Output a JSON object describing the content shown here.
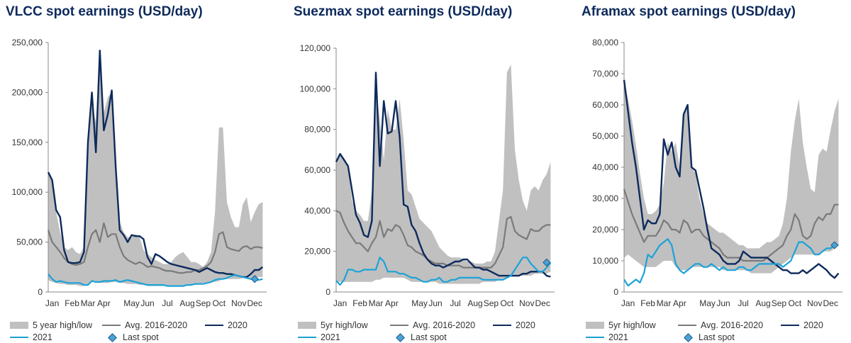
{
  "legend_colors": {
    "band": "#c0c0c0",
    "avg": "#7a7a7a",
    "y2020": "#0d2a5c",
    "y2021": "#1ba3d8",
    "last": "#4aa3d8"
  },
  "chart_data": [
    {
      "type": "area",
      "title": "VLCC spot earnings (USD/day)",
      "xlabel": "",
      "ylabel": "",
      "ylim": [
        0,
        250000
      ],
      "yticks": [
        "0",
        "50,000",
        "100,000",
        "150,000",
        "200,000",
        "250,000"
      ],
      "x_tick_labels": [
        "Jan",
        "Feb",
        "Mar",
        "Apr",
        "May",
        "Jun",
        "Jul",
        "Aug",
        "Sep",
        "Oct",
        "Nov",
        "Dec"
      ],
      "x_tick_weeks": [
        2,
        7,
        11,
        15,
        22,
        26,
        31,
        36,
        40,
        44,
        49,
        53
      ],
      "legend": [
        "5 year high/low",
        "Avg. 2016-2020",
        "2020",
        "2021",
        "Last spot"
      ],
      "band_high": [
        120000,
        110000,
        80000,
        60000,
        45000,
        42000,
        45000,
        40000,
        38000,
        45000,
        150000,
        190000,
        170000,
        240000,
        180000,
        195000,
        200000,
        120000,
        70000,
        60000,
        55000,
        55000,
        58000,
        55000,
        42000,
        38000,
        35000,
        32000,
        30000,
        28000,
        28000,
        30000,
        35000,
        38000,
        40000,
        35000,
        30000,
        30000,
        28000,
        25000,
        30000,
        40000,
        80000,
        165000,
        165000,
        90000,
        75000,
        65000,
        65000,
        88000,
        95000,
        70000,
        80000,
        88000,
        90000
      ],
      "band_low": [
        12000,
        10000,
        9000,
        8000,
        8000,
        7000,
        7000,
        7000,
        6000,
        6000,
        8000,
        10000,
        10000,
        9000,
        9000,
        9000,
        10000,
        10000,
        9000,
        9000,
        8000,
        8000,
        8000,
        7000,
        7000,
        6000,
        6000,
        6000,
        6000,
        6000,
        6000,
        6000,
        6000,
        6000,
        6000,
        7000,
        7000,
        7000,
        8000,
        9000,
        9000,
        10000,
        10000,
        11000,
        13000,
        13000,
        13000,
        13000,
        13000,
        14000,
        14000,
        14000,
        14000,
        15000,
        15000
      ],
      "series": [
        {
          "name": "Avg. 2016-2020",
          "values": [
            62000,
            50000,
            45000,
            40000,
            34000,
            30000,
            28000,
            27000,
            28000,
            30000,
            45000,
            58000,
            62000,
            50000,
            69000,
            55000,
            58000,
            58000,
            45000,
            36000,
            32000,
            30000,
            28000,
            30000,
            28000,
            25000,
            26000,
            25000,
            24000,
            22000,
            21000,
            21000,
            20000,
            19000,
            19000,
            20000,
            20000,
            22000,
            22000,
            24000,
            26000,
            30000,
            40000,
            58000,
            60000,
            45000,
            43000,
            42000,
            41000,
            45000,
            46000,
            43000,
            45000,
            45000,
            44000
          ]
        },
        {
          "name": "2020",
          "values": [
            120000,
            112000,
            82000,
            75000,
            42000,
            30000,
            29000,
            29000,
            30000,
            40000,
            150000,
            200000,
            140000,
            242000,
            162000,
            178000,
            202000,
            125000,
            62000,
            57000,
            50000,
            57000,
            56000,
            56000,
            53000,
            35000,
            28000,
            38000,
            36000,
            33000,
            30000,
            28000,
            27000,
            26000,
            25000,
            24000,
            23000,
            22000,
            20000,
            22000,
            24000,
            22000,
            20000,
            19000,
            19000,
            18000,
            18000,
            17000,
            16000,
            15000,
            15000,
            18000,
            22000,
            22000,
            25000
          ]
        },
        {
          "name": "2021",
          "values": [
            18000,
            13000,
            10000,
            11000,
            10000,
            9000,
            9000,
            9000,
            9000,
            7000,
            7000,
            11000,
            10000,
            10000,
            11000,
            11000,
            11000,
            12000,
            10000,
            11000,
            12000,
            11000,
            10000,
            9000,
            8000,
            7000,
            7000,
            7000,
            7000,
            7000,
            6000,
            6000,
            6000,
            6000,
            6000,
            7000,
            7000,
            8000,
            8000,
            8000,
            9000,
            10000,
            12000,
            13000,
            13000,
            14000,
            16000,
            17000,
            16000,
            15000,
            14000,
            13000,
            12000,
            12000,
            13000
          ]
        }
      ],
      "last_spot": {
        "week": 53,
        "value": 13000
      }
    },
    {
      "type": "area",
      "title": "Suezmax spot earnings (USD/day)",
      "xlabel": "",
      "ylabel": "",
      "ylim": [
        0,
        120000
      ],
      "yticks": [
        "0",
        "20,000",
        "40,000",
        "60,000",
        "80,000",
        "100,000",
        "120,000"
      ],
      "x_tick_labels": [
        "Jan",
        "Feb",
        "Mar",
        "Apr",
        "May",
        "Jun",
        "Jul",
        "Aug",
        "Sep",
        "Oct",
        "Nov",
        "Dec"
      ],
      "x_tick_weeks": [
        2,
        7,
        11,
        15,
        22,
        26,
        31,
        36,
        40,
        44,
        49,
        53
      ],
      "legend": [
        "5yr high/low",
        "Avg. 2016-2020",
        "2020",
        "2021",
        "Last spot"
      ],
      "band_high": [
        64000,
        68000,
        66000,
        62000,
        45000,
        40000,
        38000,
        35000,
        35000,
        50000,
        100000,
        85000,
        65000,
        90000,
        80000,
        80000,
        95000,
        75000,
        50000,
        48000,
        42000,
        36000,
        34000,
        32000,
        30000,
        26000,
        22000,
        20000,
        18000,
        17000,
        17000,
        17000,
        16000,
        15000,
        15000,
        14000,
        14000,
        14000,
        15000,
        15000,
        20000,
        35000,
        50000,
        108000,
        112000,
        70000,
        55000,
        45000,
        40000,
        50000,
        52000,
        50000,
        55000,
        58000,
        64000
      ],
      "band_low": [
        5000,
        5000,
        5000,
        5000,
        5000,
        5000,
        5000,
        5000,
        5000,
        5000,
        6000,
        6000,
        7000,
        7000,
        7000,
        7000,
        7000,
        7000,
        6000,
        5000,
        5000,
        5000,
        5000,
        5000,
        5000,
        5000,
        4000,
        4000,
        4000,
        4000,
        4000,
        4000,
        4000,
        4000,
        4000,
        4000,
        4000,
        5000,
        5000,
        5000,
        5000,
        6000,
        6000,
        7000,
        8000,
        8000,
        8000,
        8000,
        8000,
        8000,
        9000,
        9000,
        9000,
        9000,
        10000
      ],
      "series": [
        {
          "name": "Avg. 2016-2020",
          "values": [
            40000,
            39000,
            34000,
            30000,
            27000,
            24000,
            24000,
            22000,
            20000,
            24000,
            27000,
            35000,
            27000,
            31000,
            30000,
            33000,
            32000,
            28000,
            23000,
            22000,
            20000,
            19000,
            18000,
            16000,
            15000,
            14000,
            14000,
            14000,
            13000,
            13000,
            13000,
            13000,
            12000,
            12000,
            12000,
            12000,
            12000,
            12000,
            12000,
            12000,
            14000,
            18000,
            22000,
            36000,
            37000,
            30000,
            28000,
            27000,
            26000,
            31000,
            30000,
            30000,
            32000,
            33000,
            33000
          ]
        },
        {
          "name": "2020",
          "values": [
            64000,
            68000,
            65000,
            62000,
            50000,
            38000,
            34000,
            28000,
            27000,
            35000,
            108000,
            62000,
            94000,
            78000,
            79000,
            94000,
            76000,
            43000,
            42000,
            33000,
            30000,
            24000,
            19000,
            16000,
            14000,
            13000,
            13000,
            12000,
            13000,
            14000,
            15000,
            15000,
            16000,
            16000,
            14000,
            12000,
            12000,
            11000,
            11000,
            10000,
            9000,
            8000,
            8000,
            8000,
            8000,
            8000,
            8000,
            9000,
            9000,
            10000,
            10000,
            10000,
            10000,
            8000,
            7500
          ]
        },
        {
          "name": "2021",
          "values": [
            5500,
            3500,
            6000,
            11000,
            11000,
            10000,
            10000,
            11000,
            11000,
            11000,
            11000,
            17000,
            15000,
            10000,
            10000,
            10000,
            9000,
            9000,
            8000,
            7000,
            7000,
            6000,
            5000,
            5000,
            6000,
            6000,
            7000,
            5000,
            5000,
            6000,
            6000,
            7000,
            7000,
            7000,
            7000,
            7000,
            7000,
            6000,
            6000,
            6000,
            6000,
            6000,
            6000,
            7000,
            8000,
            11000,
            14000,
            17000,
            17000,
            14000,
            12000,
            10000,
            10000,
            12000,
            14500
          ]
        }
      ],
      "last_spot": {
        "week": 54,
        "value": 14500
      }
    },
    {
      "type": "area",
      "title": "Aframax spot earnings (USD/day)",
      "xlabel": "",
      "ylabel": "",
      "ylim": [
        0,
        80000
      ],
      "yticks": [
        "0",
        "10,000",
        "20,000",
        "30,000",
        "40,000",
        "50,000",
        "60,000",
        "70,000",
        "80,000"
      ],
      "x_tick_labels": [
        "Jan",
        "Feb",
        "Mar",
        "Apr",
        "May",
        "Jun",
        "Jul",
        "Aug",
        "Sep",
        "Oct",
        "Nov",
        "Dec"
      ],
      "x_tick_weeks": [
        2,
        7,
        11,
        15,
        22,
        26,
        31,
        36,
        40,
        44,
        49,
        53
      ],
      "legend": [
        "5yr high/low",
        "Avg. 2016-2020",
        "2020",
        "2021",
        "Last spot"
      ],
      "band_high": [
        68000,
        62000,
        55000,
        47000,
        38000,
        30000,
        25000,
        25000,
        26000,
        28000,
        35000,
        48000,
        45000,
        48000,
        40000,
        57000,
        60000,
        40000,
        38000,
        30000,
        25000,
        22000,
        21000,
        20000,
        19000,
        19000,
        18000,
        17000,
        16000,
        15000,
        15000,
        14000,
        14000,
        14000,
        14000,
        15000,
        16000,
        16000,
        17000,
        18000,
        22000,
        30000,
        45000,
        55000,
        62000,
        48000,
        40000,
        33000,
        32000,
        44000,
        46000,
        45000,
        52000,
        58000,
        62000
      ],
      "band_low": [
        11000,
        12000,
        11000,
        10000,
        9000,
        8000,
        8000,
        8000,
        8000,
        9000,
        10000,
        10000,
        10000,
        8000,
        7000,
        7000,
        7000,
        8000,
        8000,
        8000,
        8000,
        8000,
        8000,
        8000,
        8000,
        7000,
        7000,
        7000,
        7000,
        7000,
        7000,
        7000,
        6000,
        6000,
        6000,
        6000,
        6000,
        6000,
        7000,
        8000,
        9000,
        10000,
        11000,
        12000,
        12000,
        12000,
        12000,
        12000,
        12000,
        12000,
        13000,
        13000,
        13000,
        14000,
        15000
      ],
      "series": [
        {
          "name": "Avg. 2016-2020",
          "values": [
            33000,
            29000,
            25000,
            22000,
            19000,
            16000,
            18000,
            18000,
            18000,
            20000,
            23000,
            22000,
            20000,
            20000,
            19000,
            23000,
            22000,
            19000,
            20000,
            20000,
            18000,
            17000,
            16000,
            15000,
            14000,
            12000,
            11000,
            11000,
            11000,
            11000,
            10000,
            10000,
            10000,
            10000,
            10000,
            10000,
            11000,
            12000,
            13000,
            14000,
            15000,
            18000,
            20000,
            25000,
            23000,
            18000,
            17000,
            18000,
            22000,
            24000,
            23000,
            25000,
            25000,
            28000,
            28000
          ]
        },
        {
          "name": "2020",
          "values": [
            68000,
            58000,
            48000,
            40000,
            30000,
            20000,
            23000,
            22000,
            22000,
            25000,
            49000,
            44000,
            48000,
            40000,
            37000,
            57000,
            60000,
            40000,
            39000,
            33000,
            27000,
            20000,
            14000,
            13000,
            12000,
            10000,
            9000,
            9000,
            9000,
            10000,
            13000,
            12000,
            11000,
            11000,
            11000,
            11000,
            11000,
            10000,
            9000,
            8000,
            7000,
            7000,
            6000,
            6000,
            6000,
            7000,
            6000,
            7000,
            8000,
            9000,
            8000,
            7000,
            5500,
            4500,
            6000
          ]
        },
        {
          "name": "2021",
          "values": [
            4000,
            2000,
            3000,
            4000,
            3000,
            6000,
            12000,
            11000,
            13000,
            15000,
            16000,
            17000,
            15000,
            9000,
            7000,
            6000,
            7000,
            8000,
            9000,
            9000,
            8000,
            8000,
            9000,
            8000,
            7000,
            8000,
            7000,
            7000,
            7000,
            8000,
            8000,
            7000,
            7000,
            8000,
            9000,
            9000,
            9000,
            9000,
            9000,
            9000,
            8000,
            9000,
            10000,
            13000,
            16000,
            16000,
            15000,
            14000,
            12000,
            12000,
            13000,
            14000,
            14000,
            15000,
            15000
          ]
        }
      ],
      "last_spot": {
        "week": 54,
        "value": 15000
      }
    }
  ]
}
